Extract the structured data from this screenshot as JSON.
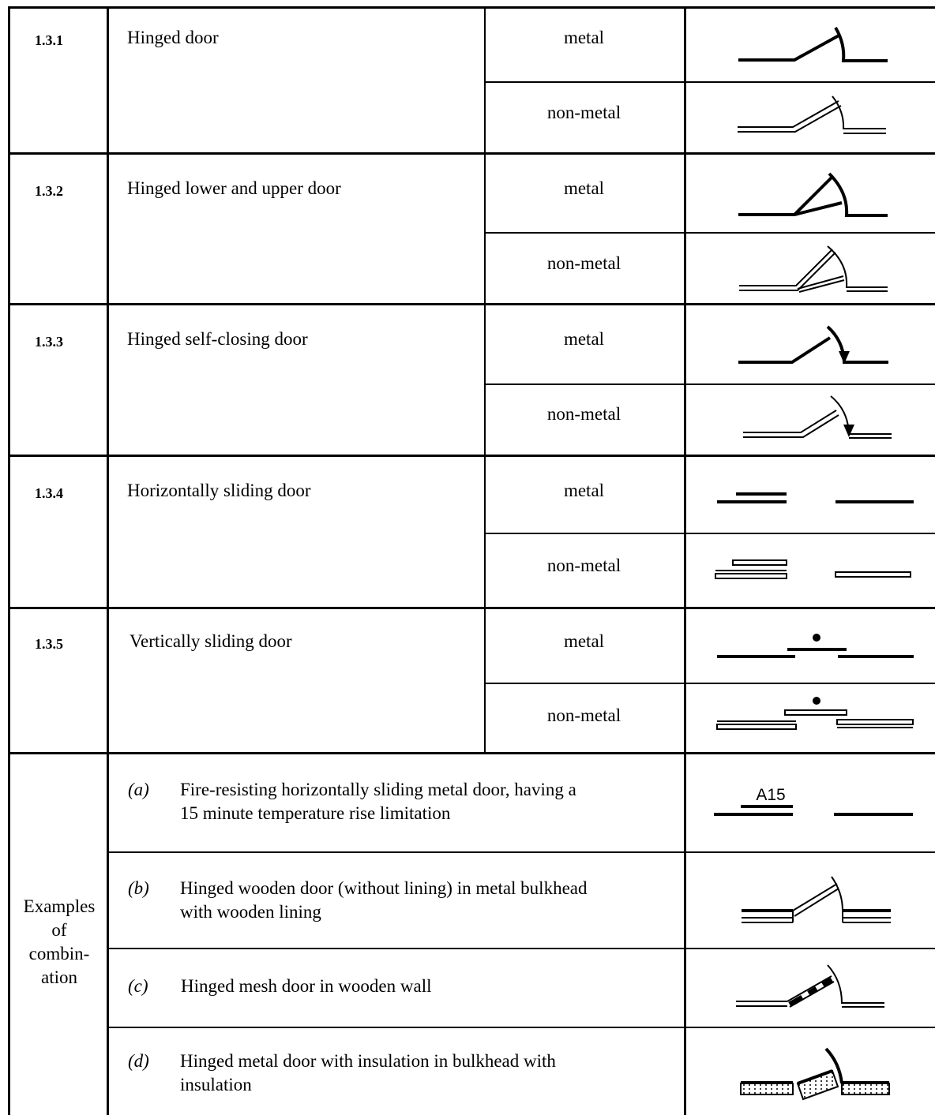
{
  "rows": [
    {
      "code": "1.3.1",
      "name": "Hinged door",
      "materials": [
        "metal",
        "non-metal"
      ]
    },
    {
      "code": "1.3.2",
      "name": "Hinged lower and upper door",
      "materials": [
        "metal",
        "non-metal"
      ]
    },
    {
      "code": "1.3.3",
      "name": "Hinged self-closing door",
      "materials": [
        "metal",
        "non-metal"
      ]
    },
    {
      "code": "1.3.4",
      "name": "Horizontally sliding door",
      "materials": [
        "metal",
        "non-metal"
      ]
    },
    {
      "code": "1.3.5",
      "name": "Vertically sliding door",
      "materials": [
        "metal",
        "non-metal"
      ]
    }
  ],
  "combination": {
    "label_lines": [
      "Examples",
      "of",
      "combin-",
      "ation"
    ],
    "examples": [
      {
        "letter": "(a)",
        "lines": [
          "Fire-resisting horizontally sliding metal door, having a",
          "15 minute temperature rise limitation"
        ],
        "symbol_label": "A15"
      },
      {
        "letter": "(b)",
        "lines": [
          "Hinged wooden door (without lining) in metal bulkhead",
          "with wooden lining"
        ]
      },
      {
        "letter": "(c)",
        "lines": [
          "Hinged mesh door in wooden wall"
        ]
      },
      {
        "letter": "(d)",
        "lines": [
          "Hinged metal door with insulation in bulkhead with",
          "insulation"
        ]
      }
    ]
  }
}
